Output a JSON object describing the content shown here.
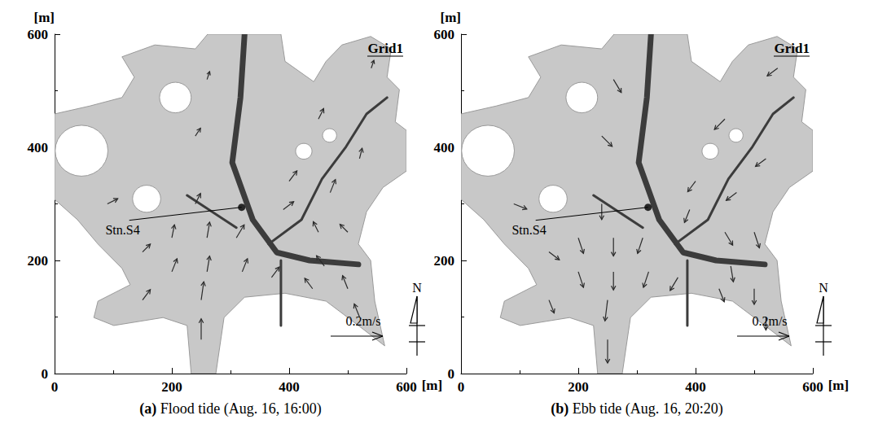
{
  "chart_data": [
    {
      "type": "vector",
      "title": "(a) Flood tide (Aug. 16, 16:00)",
      "panel_label": "Grid1",
      "xlabel": "[m]",
      "ylabel": "[m]",
      "xlim": [
        0,
        600
      ],
      "ylim": [
        0,
        600
      ],
      "xticks": [
        0,
        200,
        400,
        600
      ],
      "yticks": [
        0,
        200,
        400,
        600
      ],
      "station": {
        "name": "Stn.S4",
        "x": 319,
        "y": 294
      },
      "scale": {
        "value": 0.2,
        "label": "0.2m/s"
      },
      "north": "N",
      "color": "#2a2a2a",
      "vectors": {
        "x": [
          250,
          250,
          150,
          200,
          260,
          320,
          370,
          200,
          260,
          310,
          240,
          390,
          450,
          500,
          460,
          500,
          520,
          440,
          150,
          90,
          240,
          260,
          400,
          470,
          520,
          450,
          540
        ],
        "y": [
          60,
          130,
          130,
          180,
          180,
          180,
          170,
          240,
          240,
          240,
          300,
          290,
          250,
          250,
          190,
          150,
          100,
          150,
          215,
          300,
          420,
          520,
          340,
          320,
          380,
          450,
          540
        ],
        "u": [
          0.0,
          0.01,
          0.03,
          0.02,
          0.01,
          0.02,
          0.03,
          0.01,
          0.01,
          0.03,
          0.02,
          0.04,
          -0.02,
          -0.03,
          -0.03,
          -0.02,
          -0.02,
          -0.03,
          0.03,
          0.04,
          0.02,
          0.01,
          0.03,
          0.02,
          0.01,
          0.02,
          0.01
        ],
        "v": [
          0.08,
          0.07,
          0.04,
          0.05,
          0.06,
          0.05,
          0.04,
          0.05,
          0.06,
          0.05,
          0.04,
          0.03,
          0.04,
          0.03,
          0.04,
          0.05,
          0.05,
          0.04,
          0.03,
          0.02,
          0.03,
          0.03,
          0.04,
          0.05,
          0.04,
          0.04,
          0.03
        ]
      }
    },
    {
      "type": "vector",
      "title": "(b) Ebb tide (Aug. 16, 20:20)",
      "panel_label": "Grid1",
      "xlabel": "[m]",
      "ylabel": "[m]",
      "xlim": [
        0,
        600
      ],
      "ylim": [
        0,
        600
      ],
      "xticks": [
        0,
        200,
        400,
        600
      ],
      "yticks": [
        0,
        200,
        400,
        600
      ],
      "station": {
        "name": "Stn.S4",
        "x": 319,
        "y": 294
      },
      "scale": {
        "value": 0.2,
        "label": "0.2m/s"
      },
      "north": "N",
      "color": "#2a2a2a",
      "vectors": {
        "x": [
          250,
          250,
          150,
          200,
          260,
          320,
          370,
          200,
          260,
          310,
          240,
          390,
          450,
          500,
          460,
          500,
          520,
          440,
          150,
          90,
          240,
          260,
          400,
          470,
          520,
          450,
          540
        ],
        "y": [
          60,
          130,
          130,
          180,
          180,
          180,
          170,
          240,
          240,
          240,
          300,
          290,
          250,
          250,
          190,
          150,
          100,
          150,
          215,
          300,
          420,
          520,
          340,
          320,
          380,
          450,
          540
        ],
        "u": [
          0.0,
          -0.01,
          0.02,
          0.02,
          0.0,
          -0.02,
          -0.03,
          0.02,
          0.0,
          -0.02,
          0.0,
          -0.02,
          0.03,
          0.02,
          0.01,
          0.0,
          0.0,
          0.02,
          0.04,
          0.05,
          0.04,
          0.03,
          -0.03,
          -0.04,
          -0.04,
          -0.04,
          -0.04
        ],
        "v": [
          -0.09,
          -0.08,
          -0.05,
          -0.06,
          -0.07,
          -0.06,
          -0.05,
          -0.06,
          -0.07,
          -0.06,
          -0.06,
          -0.05,
          -0.05,
          -0.06,
          -0.06,
          -0.06,
          -0.05,
          -0.05,
          -0.03,
          -0.02,
          -0.04,
          -0.05,
          -0.04,
          -0.03,
          -0.03,
          -0.04,
          -0.03
        ]
      }
    }
  ],
  "map": {
    "boundary": {
      "x": [
        261,
        386,
        393,
        442,
        463,
        490,
        539,
        574,
        567,
        588,
        581,
        600,
        600,
        560,
        532,
        518,
        539,
        546,
        563,
        518,
        463,
        393,
        324,
        289,
        275,
        233,
        226,
        185,
        143,
        101,
        67,
        74,
        129,
        115,
        74,
        39,
        0,
        0,
        60,
        115,
        136,
        115,
        171,
        240
      ],
      "y": [
        600,
        600,
        552,
        516,
        552,
        581,
        596,
        574,
        524,
        502,
        445,
        430,
        358,
        329,
        286,
        229,
        200,
        128,
        49,
        85,
        128,
        142,
        135,
        99,
        0,
        0,
        85,
        99,
        92,
        85,
        99,
        128,
        157,
        186,
        229,
        272,
        308,
        459,
        473,
        488,
        524,
        560,
        581,
        574
      ]
    },
    "islands": {
      "x": [
        46,
        206,
        157,
        425,
        469
      ],
      "y": [
        394,
        488,
        309,
        393,
        421
      ],
      "r": [
        45,
        27,
        24,
        14,
        12
      ]
    },
    "channels": [
      {
        "x": [
          324,
          317,
          303,
          338,
          379,
          435,
          518
        ],
        "y": [
          600,
          488,
          373,
          272,
          214,
          200,
          193
        ]
      },
      {
        "x": [
          365,
          421,
          456,
          497,
          532,
          567
        ],
        "y": [
          229,
          272,
          344,
          401,
          459,
          488
        ]
      },
      {
        "x": [
          386,
          386
        ],
        "y": [
          200,
          85
        ]
      },
      {
        "x": [
          226,
          310
        ],
        "y": [
          315,
          258
        ]
      }
    ]
  }
}
